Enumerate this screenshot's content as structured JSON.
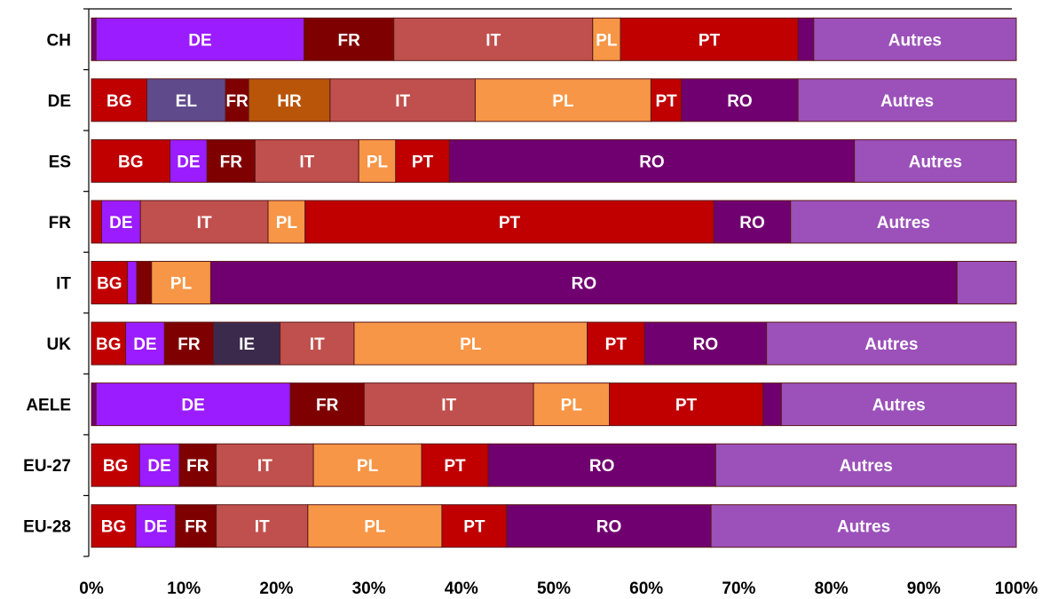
{
  "chart_data": {
    "type": "bar",
    "orientation": "horizontal",
    "stacked": "percent",
    "title": "",
    "xlabel": "",
    "ylabel": "",
    "xlim": [
      0,
      100
    ],
    "x_ticks": [
      "0%",
      "10%",
      "20%",
      "30%",
      "40%",
      "50%",
      "60%",
      "70%",
      "80%",
      "90%",
      "100%"
    ],
    "grid": false,
    "legend": "none",
    "colors": {
      "BG": "#c00000",
      "DE": "#9b1cff",
      "EL": "#5f4b8b",
      "FR": "#7f0000",
      "HR": "#b85509",
      "IE": "#3b2a4c",
      "IT": "#c0504d",
      "PL": "#f79646",
      "PT": "#c00000",
      "RO": "#700070",
      "Autres": "#9b51b9",
      "other": "#700070"
    },
    "bars": [
      {
        "category": "CH",
        "segments": [
          {
            "code": "other",
            "label": "",
            "value": 0.5
          },
          {
            "code": "DE",
            "label": "DE",
            "value": 22.5
          },
          {
            "code": "FR",
            "label": "FR",
            "value": 9.7
          },
          {
            "code": "IT",
            "label": "IT",
            "value": 21.5
          },
          {
            "code": "PL",
            "label": "PL",
            "value": 3.0
          },
          {
            "code": "PT",
            "label": "PT",
            "value": 19.2
          },
          {
            "code": "RO",
            "label": "",
            "value": 1.7
          },
          {
            "code": "Autres",
            "label": "Autres",
            "value": 21.9
          }
        ]
      },
      {
        "category": "DE",
        "segments": [
          {
            "code": "BG",
            "label": "BG",
            "value": 6.0
          },
          {
            "code": "EL",
            "label": "EL",
            "value": 8.5
          },
          {
            "code": "FR",
            "label": "FR",
            "value": 2.5
          },
          {
            "code": "HR",
            "label": "HR",
            "value": 8.8
          },
          {
            "code": "IT",
            "label": "IT",
            "value": 15.7
          },
          {
            "code": "PL",
            "label": "PL",
            "value": 19.0
          },
          {
            "code": "PT",
            "label": "PT",
            "value": 3.3
          },
          {
            "code": "RO",
            "label": "RO",
            "value": 12.6
          },
          {
            "code": "Autres",
            "label": "Autres",
            "value": 23.6
          }
        ]
      },
      {
        "category": "ES",
        "segments": [
          {
            "code": "BG",
            "label": "BG",
            "value": 8.5
          },
          {
            "code": "DE",
            "label": "DE",
            "value": 4.0
          },
          {
            "code": "FR",
            "label": "FR",
            "value": 5.2
          },
          {
            "code": "IT",
            "label": "IT",
            "value": 11.2
          },
          {
            "code": "PL",
            "label": "PL",
            "value": 4.0
          },
          {
            "code": "PT",
            "label": "PT",
            "value": 5.8
          },
          {
            "code": "RO",
            "label": "RO",
            "value": 43.8
          },
          {
            "code": "Autres",
            "label": "Autres",
            "value": 17.5
          }
        ]
      },
      {
        "category": "FR",
        "segments": [
          {
            "code": "PT",
            "label": "",
            "value": 1.1
          },
          {
            "code": "DE",
            "label": "DE",
            "value": 4.2
          },
          {
            "code": "IT",
            "label": "IT",
            "value": 13.8
          },
          {
            "code": "PL",
            "label": "PL",
            "value": 4.0
          },
          {
            "code": "PT",
            "label": "PT",
            "value": 44.2
          },
          {
            "code": "RO",
            "label": "RO",
            "value": 8.3
          },
          {
            "code": "Autres",
            "label": "Autres",
            "value": 24.4
          }
        ]
      },
      {
        "category": "IT",
        "segments": [
          {
            "code": "BG",
            "label": "BG",
            "value": 3.9
          },
          {
            "code": "DE",
            "label": "",
            "value": 1.0
          },
          {
            "code": "FR",
            "label": "",
            "value": 1.6
          },
          {
            "code": "PL",
            "label": "PL",
            "value": 6.4
          },
          {
            "code": "RO",
            "label": "RO",
            "value": 80.7
          },
          {
            "code": "Autres",
            "label": "",
            "value": 6.4
          }
        ]
      },
      {
        "category": "UK",
        "segments": [
          {
            "code": "BG",
            "label": "BG",
            "value": 3.7
          },
          {
            "code": "DE",
            "label": "DE",
            "value": 4.2
          },
          {
            "code": "FR",
            "label": "FR",
            "value": 5.3
          },
          {
            "code": "IE",
            "label": "IE",
            "value": 7.2
          },
          {
            "code": "IT",
            "label": "IT",
            "value": 8.0
          },
          {
            "code": "PL",
            "label": "PL",
            "value": 25.2
          },
          {
            "code": "PT",
            "label": "PT",
            "value": 6.2
          },
          {
            "code": "RO",
            "label": "RO",
            "value": 13.2
          },
          {
            "code": "Autres",
            "label": "Autres",
            "value": 27.0
          }
        ]
      },
      {
        "category": "AELE",
        "segments": [
          {
            "code": "other",
            "label": "",
            "value": 0.5
          },
          {
            "code": "DE",
            "label": "DE",
            "value": 21.0
          },
          {
            "code": "FR",
            "label": "FR",
            "value": 8.0
          },
          {
            "code": "IT",
            "label": "IT",
            "value": 18.3
          },
          {
            "code": "PL",
            "label": "PL",
            "value": 8.2
          },
          {
            "code": "PT",
            "label": "PT",
            "value": 16.6
          },
          {
            "code": "RO",
            "label": "",
            "value": 2.0
          },
          {
            "code": "Autres",
            "label": "Autres",
            "value": 25.4
          }
        ]
      },
      {
        "category": "EU-27",
        "segments": [
          {
            "code": "BG",
            "label": "BG",
            "value": 5.2
          },
          {
            "code": "DE",
            "label": "DE",
            "value": 4.3
          },
          {
            "code": "FR",
            "label": "FR",
            "value": 4.0
          },
          {
            "code": "IT",
            "label": "IT",
            "value": 10.5
          },
          {
            "code": "PL",
            "label": "PL",
            "value": 11.7
          },
          {
            "code": "PT",
            "label": "PT",
            "value": 7.2
          },
          {
            "code": "RO",
            "label": "RO",
            "value": 24.6
          },
          {
            "code": "Autres",
            "label": "Autres",
            "value": 32.5
          }
        ]
      },
      {
        "category": "EU-28",
        "segments": [
          {
            "code": "BG",
            "label": "BG",
            "value": 4.8
          },
          {
            "code": "DE",
            "label": "DE",
            "value": 4.3
          },
          {
            "code": "FR",
            "label": "FR",
            "value": 4.4
          },
          {
            "code": "IT",
            "label": "IT",
            "value": 9.9
          },
          {
            "code": "PL",
            "label": "PL",
            "value": 14.5
          },
          {
            "code": "PT",
            "label": "PT",
            "value": 7.0
          },
          {
            "code": "RO",
            "label": "RO",
            "value": 22.1
          },
          {
            "code": "Autres",
            "label": "Autres",
            "value": 33.0
          }
        ]
      }
    ]
  }
}
